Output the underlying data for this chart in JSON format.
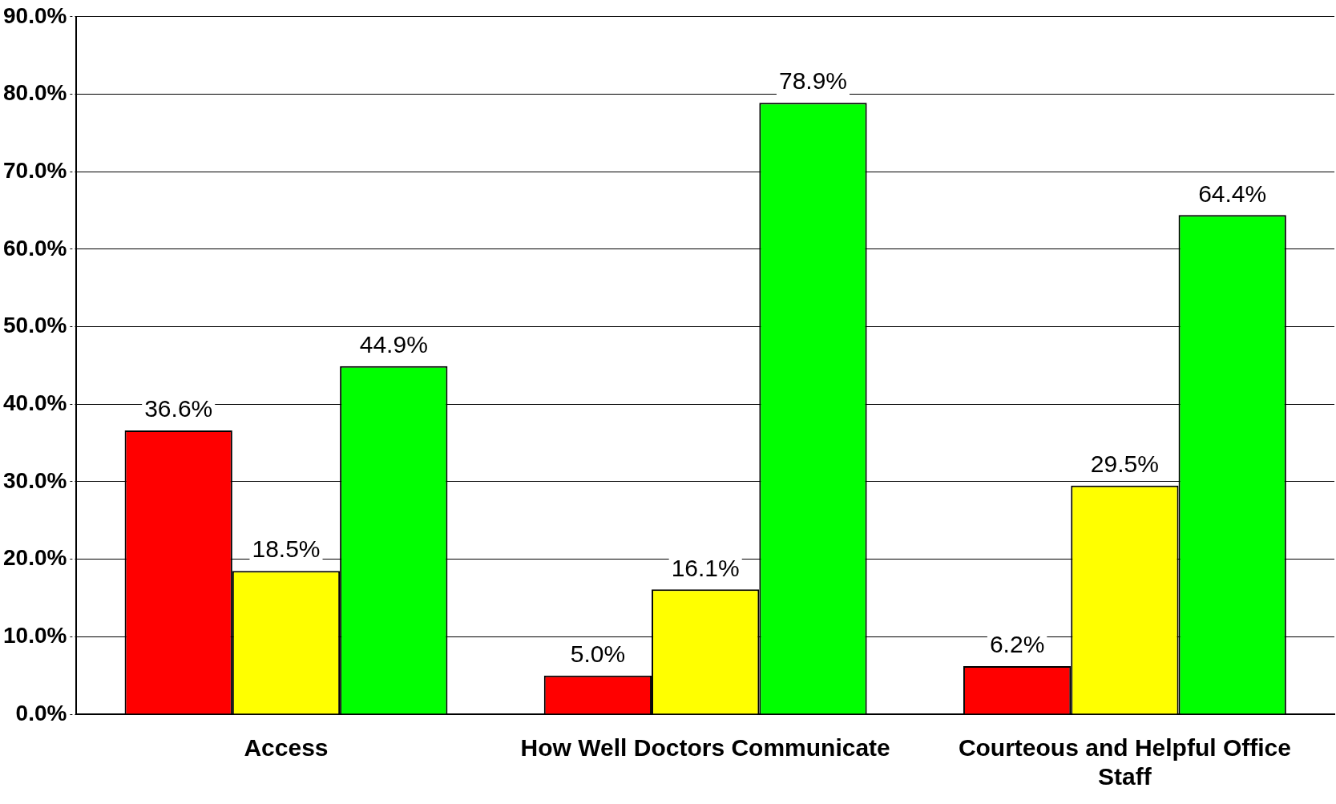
{
  "chart_data": {
    "type": "bar",
    "categories": [
      "Access",
      "How Well Doctors Communicate",
      "Courteous and Helpful Office Staff"
    ],
    "series": [
      {
        "color": "#ff0000",
        "values": [
          36.6,
          5.0,
          6.2
        ],
        "value_labels": [
          "36.6%",
          "5.0%",
          "6.2%"
        ]
      },
      {
        "color": "#ffff00",
        "values": [
          18.5,
          16.1,
          29.5
        ],
        "value_labels": [
          "18.5%",
          "16.1%",
          "29.5%"
        ]
      },
      {
        "color": "#00ff00",
        "values": [
          44.9,
          78.9,
          64.4
        ],
        "value_labels": [
          "44.9%",
          "78.9%",
          "64.4%"
        ]
      }
    ],
    "ylim": [
      0,
      90
    ],
    "yticks": [
      {
        "value": 0,
        "label": "0.0%"
      },
      {
        "value": 10,
        "label": "10.0%"
      },
      {
        "value": 20,
        "label": "20.0%"
      },
      {
        "value": 30,
        "label": "30.0%"
      },
      {
        "value": 40,
        "label": "40.0%"
      },
      {
        "value": 50,
        "label": "50.0%"
      },
      {
        "value": 60,
        "label": "60.0%"
      },
      {
        "value": 70,
        "label": "70.0%"
      },
      {
        "value": 80,
        "label": "80.0%"
      },
      {
        "value": 90,
        "label": "90.0%"
      }
    ],
    "grid": "y",
    "legend": false
  }
}
